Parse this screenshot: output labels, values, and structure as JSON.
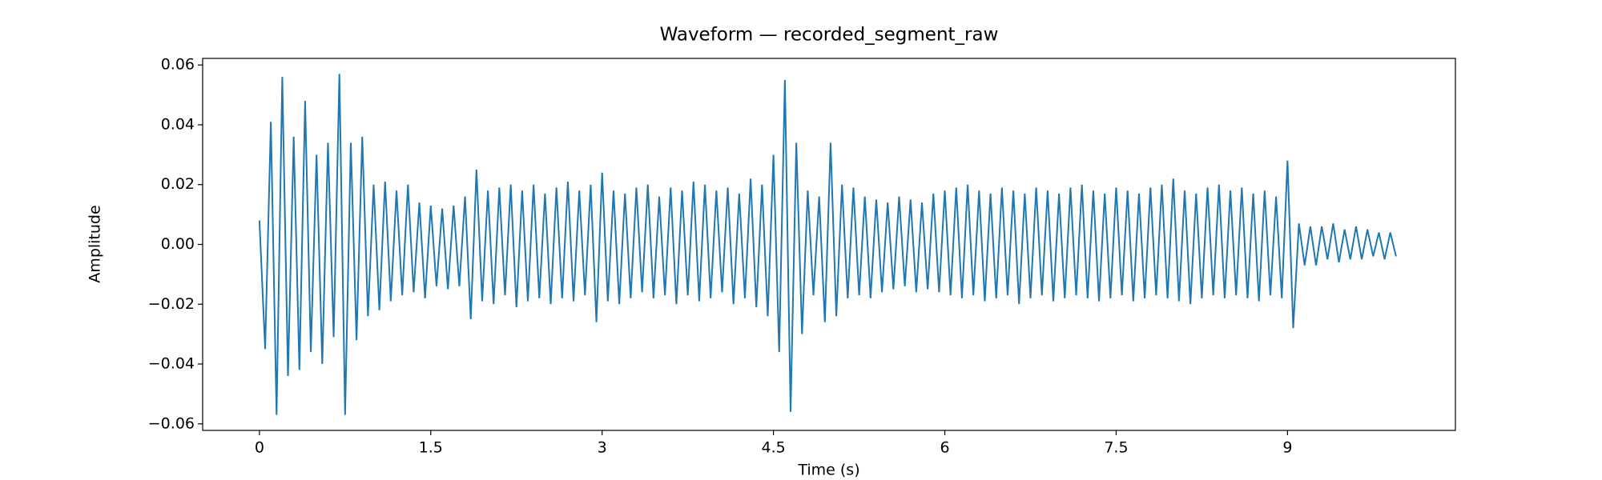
{
  "chart_data": {
    "type": "line",
    "title": "Waveform — recorded_segment_raw",
    "x_label": "Time (s)",
    "y_label": "Amplitude",
    "color": "#1f77b4",
    "xlim": [
      -0.497,
      10.47
    ],
    "ylim": [
      -0.0622,
      0.0622
    ],
    "xticks": [
      0,
      1.5,
      3,
      4.5,
      6,
      7.5,
      9
    ],
    "yticks": [
      {
        "value": -0.06,
        "label": "−0.06"
      },
      {
        "value": -0.04,
        "label": "−0.04"
      },
      {
        "value": -0.02,
        "label": "−0.02"
      },
      {
        "value": 0,
        "label": "0.00"
      },
      {
        "value": 0.02,
        "label": "0.02"
      },
      {
        "value": 0.04,
        "label": "0.04"
      },
      0.06
    ],
    "x": [
      0,
      0.05,
      0.1,
      0.15,
      0.2,
      0.25,
      0.3,
      0.35,
      0.4,
      0.45,
      0.5,
      0.55,
      0.6,
      0.65,
      0.7,
      0.75,
      0.8,
      0.85,
      0.9,
      0.95,
      1,
      1.05,
      1.1,
      1.15,
      1.2,
      1.25,
      1.3,
      1.35,
      1.4,
      1.45,
      1.5,
      1.55,
      1.6,
      1.65,
      1.7,
      1.75,
      1.8,
      1.85,
      1.9,
      1.95,
      2,
      2.05,
      2.1,
      2.15,
      2.2,
      2.25,
      2.3,
      2.35,
      2.4,
      2.45,
      2.5,
      2.55,
      2.6,
      2.65,
      2.7,
      2.75,
      2.8,
      2.85,
      2.9,
      2.95,
      3,
      3.05,
      3.1,
      3.15,
      3.2,
      3.25,
      3.3,
      3.35,
      3.4,
      3.45,
      3.5,
      3.55,
      3.6,
      3.65,
      3.7,
      3.75,
      3.8,
      3.85,
      3.9,
      3.95,
      4,
      4.05,
      4.1,
      4.15,
      4.2,
      4.25,
      4.3,
      4.35,
      4.4,
      4.45,
      4.5,
      4.55,
      4.6,
      4.65,
      4.7,
      4.75,
      4.8,
      4.85,
      4.9,
      4.95,
      5,
      5.05,
      5.1,
      5.15,
      5.2,
      5.25,
      5.3,
      5.35,
      5.4,
      5.45,
      5.5,
      5.55,
      5.6,
      5.65,
      5.7,
      5.75,
      5.8,
      5.85,
      5.9,
      5.95,
      6,
      6.05,
      6.1,
      6.15,
      6.2,
      6.25,
      6.3,
      6.35,
      6.4,
      6.45,
      6.5,
      6.55,
      6.6,
      6.65,
      6.7,
      6.75,
      6.8,
      6.85,
      6.9,
      6.95,
      7,
      7.05,
      7.1,
      7.15,
      7.2,
      7.25,
      7.3,
      7.35,
      7.4,
      7.45,
      7.5,
      7.55,
      7.6,
      7.65,
      7.7,
      7.75,
      7.8,
      7.85,
      7.9,
      7.95,
      8,
      8.05,
      8.1,
      8.15,
      8.2,
      8.25,
      8.3,
      8.35,
      8.4,
      8.45,
      8.5,
      8.55,
      8.6,
      8.65,
      8.7,
      8.75,
      8.8,
      8.85,
      8.9,
      8.95,
      9,
      9.05,
      9.1,
      9.15,
      9.2,
      9.25,
      9.3,
      9.35,
      9.4,
      9.45,
      9.5,
      9.55,
      9.6,
      9.65,
      9.7,
      9.75,
      9.8,
      9.85,
      9.9,
      9.95
    ],
    "values": [
      0.008,
      -0.035,
      0.041,
      -0.057,
      0.056,
      -0.044,
      0.036,
      -0.042,
      0.048,
      -0.036,
      0.03,
      -0.04,
      0.034,
      -0.031,
      0.057,
      -0.057,
      0.034,
      -0.032,
      0.036,
      -0.024,
      0.02,
      -0.022,
      0.021,
      -0.019,
      0.018,
      -0.017,
      0.02,
      -0.016,
      0.014,
      -0.018,
      0.013,
      -0.014,
      0.012,
      -0.015,
      0.013,
      -0.014,
      0.016,
      -0.025,
      0.025,
      -0.019,
      0.018,
      -0.02,
      0.019,
      -0.017,
      0.02,
      -0.021,
      0.018,
      -0.019,
      0.02,
      -0.018,
      0.017,
      -0.02,
      0.019,
      -0.018,
      0.021,
      -0.019,
      0.018,
      -0.017,
      0.02,
      -0.026,
      0.024,
      -0.019,
      0.018,
      -0.02,
      0.017,
      -0.018,
      0.019,
      -0.016,
      0.02,
      -0.018,
      0.016,
      -0.017,
      0.019,
      -0.02,
      0.018,
      -0.017,
      0.021,
      -0.019,
      0.02,
      -0.018,
      0.018,
      -0.016,
      0.019,
      -0.02,
      0.017,
      -0.018,
      0.022,
      -0.021,
      0.02,
      -0.024,
      0.03,
      -0.036,
      0.055,
      -0.056,
      0.034,
      -0.03,
      0.018,
      -0.017,
      0.016,
      -0.026,
      0.034,
      -0.024,
      0.02,
      -0.018,
      0.019,
      -0.017,
      0.016,
      -0.018,
      0.015,
      -0.016,
      0.014,
      -0.015,
      0.016,
      -0.014,
      0.015,
      -0.016,
      0.014,
      -0.015,
      0.017,
      -0.016,
      0.018,
      -0.017,
      0.019,
      -0.018,
      0.02,
      -0.017,
      0.018,
      -0.019,
      0.017,
      -0.018,
      0.019,
      -0.017,
      0.018,
      -0.02,
      0.017,
      -0.018,
      0.019,
      -0.017,
      0.018,
      -0.019,
      0.017,
      -0.018,
      0.019,
      -0.017,
      0.02,
      -0.018,
      0.018,
      -0.019,
      0.017,
      -0.018,
      0.019,
      -0.017,
      0.018,
      -0.019,
      0.017,
      -0.018,
      0.019,
      -0.017,
      0.02,
      -0.018,
      0.022,
      -0.019,
      0.018,
      -0.02,
      0.017,
      -0.018,
      0.019,
      -0.017,
      0.02,
      -0.018,
      0.018,
      -0.017,
      0.019,
      -0.018,
      0.017,
      -0.019,
      0.018,
      -0.017,
      0.016,
      -0.018,
      0.028,
      -0.028,
      0.007,
      -0.007,
      0.006,
      -0.007,
      0.006,
      -0.005,
      0.007,
      -0.006,
      0.005,
      -0.005,
      0.006,
      -0.005,
      0.005,
      -0.004,
      0.004,
      -0.005,
      0.004,
      -0.004
    ]
  }
}
